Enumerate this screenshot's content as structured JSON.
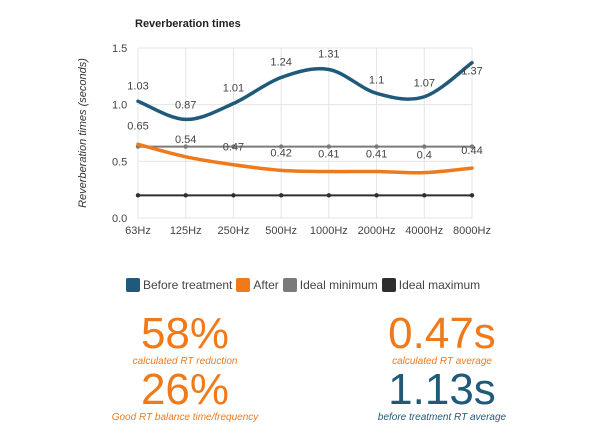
{
  "colors": {
    "before": "#1f5a7a",
    "after": "#f07a1a",
    "ideal_min": "#7a7a7a",
    "ideal_max": "#2e2e2e",
    "grid": "#e4e4e4"
  },
  "chart_data": {
    "type": "line",
    "title": "Reverberation times",
    "ylabel": "Reverberation times (seconds)",
    "xlabel": "",
    "categories": [
      "63Hz",
      "125Hz",
      "250Hz",
      "500Hz",
      "1000Hz",
      "2000Hz",
      "4000Hz",
      "8000Hz"
    ],
    "ylim": [
      0,
      1.5
    ],
    "yticks": [
      "0.0",
      "0.5",
      "1.0",
      "1.5"
    ],
    "grid": true,
    "legend_position": "bottom",
    "series": [
      {
        "name": "Before treatment",
        "values": [
          1.03,
          0.87,
          1.01,
          1.24,
          1.31,
          1.1,
          1.07,
          1.37
        ],
        "labels": [
          "1.03",
          "0.87",
          "1.01",
          "1.24",
          "1.31",
          "1.1",
          "1.07",
          "1.37"
        ],
        "color": "#1f5a7a"
      },
      {
        "name": "After",
        "values": [
          0.65,
          0.54,
          0.47,
          0.42,
          0.41,
          0.41,
          0.4,
          0.44
        ],
        "labels": [
          "0.65",
          "0.54",
          "0.47",
          "0.42",
          "0.41",
          "0.41",
          "0.4",
          "0.44"
        ],
        "color": "#f07a1a"
      },
      {
        "name": "Ideal minimum",
        "values": [
          0.63,
          0.63,
          0.63,
          0.63,
          0.63,
          0.63,
          0.63,
          0.63
        ],
        "color": "#7a7a7a"
      },
      {
        "name": "Ideal maximum",
        "values": [
          0.2,
          0.2,
          0.2,
          0.2,
          0.2,
          0.2,
          0.2,
          0.2
        ],
        "color": "#2e2e2e"
      }
    ]
  },
  "stats": [
    {
      "value": "58%",
      "label": "calculated RT reduction",
      "color": "#f07a1a"
    },
    {
      "value": "0.47s",
      "label": "calculated RT average",
      "color": "#f07a1a"
    },
    {
      "value": "26%",
      "label": "Good RT balance time/frequency",
      "color": "#f07a1a"
    },
    {
      "value": "1.13s",
      "label": "before treatment RT average",
      "color": "#1f5a7a"
    }
  ]
}
